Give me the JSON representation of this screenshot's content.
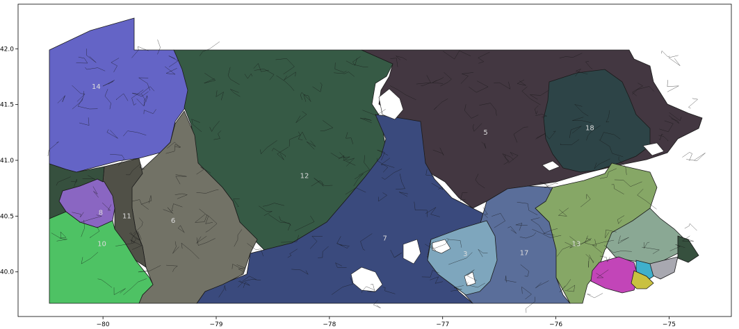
{
  "chart_data": {
    "type": "map",
    "title": "",
    "xlabel": "",
    "ylabel": "",
    "xlim": [
      -80.75,
      -74.45
    ],
    "ylim": [
      39.6,
      42.4
    ],
    "x_ticks": [
      {
        "value": -80,
        "label": "−80"
      },
      {
        "value": -79,
        "label": "−79"
      },
      {
        "value": -78,
        "label": "−78"
      },
      {
        "value": -77,
        "label": "−77"
      },
      {
        "value": -76,
        "label": "−76"
      },
      {
        "value": -75,
        "label": "−75"
      }
    ],
    "y_ticks": [
      {
        "value": 40.0,
        "label": "40.0"
      },
      {
        "value": 40.5,
        "label": "40.5"
      },
      {
        "value": 41.0,
        "label": "41.0"
      },
      {
        "value": 41.5,
        "label": "41.5"
      },
      {
        "value": 42.0,
        "label": "42.0"
      }
    ],
    "grid": false,
    "districts": [
      {
        "id": "14",
        "label": "14",
        "color": "#6464c6",
        "lon": -80.06,
        "lat": 41.66
      },
      {
        "id": "12",
        "label": "12",
        "color": "#365a45",
        "lon": -78.22,
        "lat": 40.86
      },
      {
        "id": "5",
        "label": "5",
        "color": "#433741",
        "lon": -76.62,
        "lat": 41.25
      },
      {
        "id": "18",
        "label": "18",
        "color": "#2d4447",
        "lon": -75.7,
        "lat": 41.29
      },
      {
        "id": "7",
        "label": "7",
        "color": "#3a4a7d",
        "lon": -77.51,
        "lat": 40.3
      },
      {
        "id": "3",
        "label": "3",
        "color": "#7ea6bd",
        "lon": -76.8,
        "lat": 40.16
      },
      {
        "id": "17",
        "label": "17",
        "color": "#5a6e9a",
        "lon": -76.28,
        "lat": 40.17
      },
      {
        "id": "13",
        "label": "13",
        "color": "#86a766",
        "lon": -75.82,
        "lat": 40.25
      },
      {
        "id": "6",
        "label": "6",
        "color": "#727266",
        "lon": -79.38,
        "lat": 40.46
      },
      {
        "id": "11",
        "label": "11",
        "color": "#505047",
        "lon": -79.79,
        "lat": 40.5
      },
      {
        "id": "8",
        "label": "8",
        "color": "#8a66c2",
        "lon": -80.02,
        "lat": 40.53
      },
      {
        "id": "10",
        "label": "10",
        "color": "#4ec264",
        "lon": -80.01,
        "lat": 40.25
      },
      {
        "id": "16",
        "label": "",
        "color": "#8aa894",
        "lon": -75.14,
        "lat": 40.24
      },
      {
        "id": "15",
        "label": "",
        "color": "#c245b8",
        "lon": -75.37,
        "lat": 39.98
      },
      {
        "id": "2",
        "label": "",
        "color": "#c9c140",
        "lon": -75.2,
        "lat": 39.91
      },
      {
        "id": "1",
        "label": "",
        "color": "#3fb0cc",
        "lon": -75.13,
        "lat": 40.02
      },
      {
        "id": "4",
        "label": "",
        "color": "#a8a8b0",
        "lon": -74.95,
        "lat": 40.07
      },
      {
        "id": "9",
        "label": "",
        "color": "#36503e",
        "lon": -74.82,
        "lat": 40.17
      }
    ]
  }
}
